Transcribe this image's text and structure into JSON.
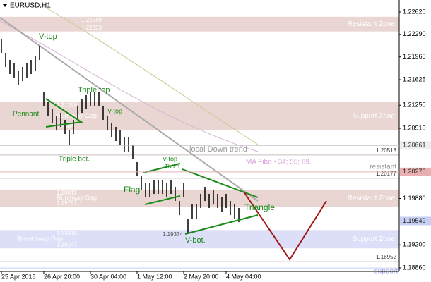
{
  "chart_data": {
    "type": "ohlc",
    "title": "EURUSD,H1",
    "color": "#000000",
    "categories": [
      "25 Apr 2018",
      null,
      null,
      null,
      null,
      null,
      null,
      null,
      null,
      null,
      "26 Apr 20:00",
      null,
      null,
      null,
      null,
      null,
      null,
      null,
      null,
      null,
      null,
      "30 Apr 04:00",
      null,
      null,
      null,
      null,
      null,
      null,
      null,
      null,
      null,
      null,
      "1 May 12:00",
      null,
      null,
      null,
      null,
      null,
      null,
      null,
      null,
      null,
      null,
      "2 May 20:00",
      null,
      null,
      null,
      null,
      null,
      null,
      null,
      null,
      null,
      "4 May 04:00",
      null,
      null,
      null
    ],
    "high": [
      1.22227,
      1.2202,
      1.21916,
      1.21864,
      1.21761,
      1.21812,
      1.21864,
      1.21916,
      1.21968,
      1.22123,
      1.2145,
      1.21294,
      1.21191,
      1.21087,
      1.21139,
      1.21035,
      1.2088,
      1.21035,
      1.21243,
      1.21346,
      1.21398,
      1.2145,
      1.2145,
      1.2145,
      1.21243,
      1.21087,
      1.20984,
      1.20932,
      1.2088,
      1.20776,
      1.20776,
      1.20673,
      1.20414,
      1.20207,
      1.20103,
      1.20103,
      1.20155,
      1.20155,
      1.20155,
      1.20103,
      1.20155,
      1.20051,
      1.19844,
      1.20103,
      1.19585,
      1.19792,
      1.19792,
      1.19948,
      1.20051,
      1.19948,
      1.19999,
      1.19948,
      1.19896,
      1.19948,
      1.19844,
      1.19792,
      1.1974
    ],
    "low": [
      1.22019,
      1.21812,
      1.21708,
      1.21656,
      1.21553,
      1.21604,
      1.21656,
      1.21708,
      1.2176,
      1.21915,
      1.21242,
      1.21086,
      1.20983,
      1.20879,
      1.20931,
      1.20827,
      1.20672,
      1.20827,
      1.21035,
      1.21138,
      1.2119,
      1.21242,
      1.21242,
      1.21242,
      1.21035,
      1.20879,
      1.20776,
      1.20724,
      1.20672,
      1.20568,
      1.20568,
      1.20465,
      1.20206,
      1.19999,
      1.19895,
      1.19895,
      1.19947,
      1.19947,
      1.19947,
      1.19895,
      1.19947,
      1.19843,
      1.19636,
      1.19895,
      1.19377,
      1.19584,
      1.19584,
      1.1974,
      1.19843,
      1.1974,
      1.19791,
      1.1974,
      1.19688,
      1.1974,
      1.19636,
      1.19584,
      1.19532
    ],
    "ylim": [
      1.18808,
      1.22796
    ],
    "yticks": [
      {
        "value": 1.2262,
        "label": "1.22620"
      },
      {
        "value": 1.2229,
        "label": "1.22290"
      },
      {
        "value": 1.2196,
        "label": "1.21960"
      },
      1.21625,
      {
        "value": 1.2125,
        "label": "1.21250"
      },
      {
        "value": 1.2091,
        "label": "1.20910"
      },
      {
        "value": 1.1988,
        "label": "1.19880"
      },
      {
        "value": 1.192,
        "label": "1.19200"
      },
      {
        "value": 1.1886,
        "label": "1.18860"
      }
    ],
    "zones": [
      {
        "name": "Resistant Zone",
        "top": 1.22549,
        "bottom": 1.22333,
        "color": "#e9d6d2"
      },
      {
        "name": "Support Zone",
        "top": 1.21299,
        "bottom": 1.2088,
        "gap": "Runaway Gap",
        "color": "#e9d6d2"
      },
      {
        "name": "Resistant Zone",
        "top": 1.20011,
        "bottom": 1.19757,
        "gap": "Runaway Gap",
        "color": "#e9d6d2"
      },
      {
        "name": "Support Zone",
        "top": 1.19416,
        "bottom": 1.19147,
        "gap": "Breakaway Gap",
        "color": "#dcdff7"
      }
    ],
    "axis_levels": [
      {
        "value": 1.20661,
        "label": "1.20661",
        "color": "#eeeeee",
        "text_color": "#333333",
        "line": "#bbbbbb"
      },
      {
        "value": 1.2027,
        "label": "1.20270",
        "name": "resistant",
        "color": "#e8b0b0",
        "text_color": "#222222",
        "line": "#e8b0b0"
      },
      {
        "value": 1.19549,
        "label": "1.19549",
        "color": "#c8cff5",
        "text_color": "#222222",
        "line": "#c8cff5"
      }
    ],
    "levels": [
      1.20518,
      1.20177,
      1.18952
    ],
    "support": "support",
    "annotations": [
      "Pennant",
      "V-top",
      "Triple top",
      "V-top",
      "Triple bot.",
      "Thorn",
      "Flag",
      "Triangle",
      "V-bot.",
      "1.19374",
      "local Down trend",
      "MA Fibo - 34; 55; 89."
    ]
  }
}
